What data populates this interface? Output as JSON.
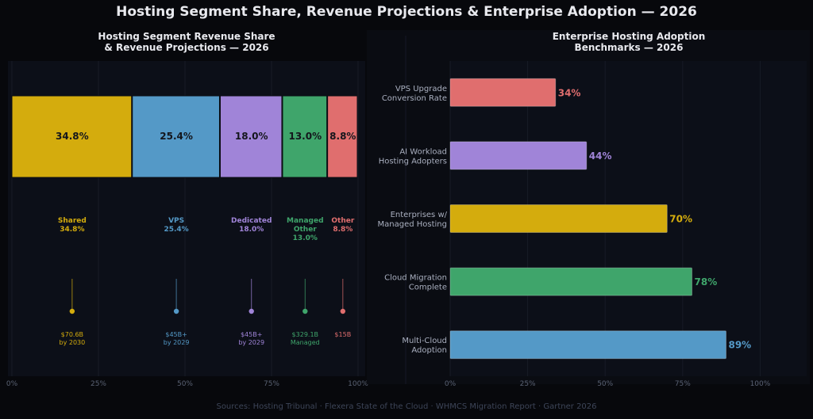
{
  "title": "Hosting Segment Share, Revenue Projections & Enterprise Adoption — 2026",
  "footer": "Sources: Hosting Tribunal · Flexera State of the Cloud · WHMCS Migration Report · Gartner 2026",
  "colors": {
    "background": "#07080c",
    "panel": "#0c0f18",
    "shared": "#d4ac0d",
    "vps": "#5499c7",
    "dedicated": "#a084d8",
    "managed": "#3fa56b",
    "other": "#e06e6e",
    "tick": "#5a6274",
    "label": "#aab0c0"
  },
  "chart_data": [
    {
      "type": "bar",
      "orientation": "horizontal-stacked",
      "title_lines": [
        "Hosting Segment Revenue Share",
        "& Revenue Projections — 2026"
      ],
      "xlim": [
        0,
        100
      ],
      "xticks": [
        "0%",
        "25%",
        "50%",
        "75%",
        "100%"
      ],
      "segments": [
        {
          "name": "Shared",
          "name_lines": [
            "Shared"
          ],
          "value": 34.8,
          "value_label": "34.8%",
          "projection_lines": [
            "$70.6B",
            "by 2030"
          ],
          "color": "#d4ac0d"
        },
        {
          "name": "VPS",
          "name_lines": [
            "VPS"
          ],
          "value": 25.4,
          "value_label": "25.4%",
          "projection_lines": [
            "$45B+",
            "by 2029"
          ],
          "color": "#5499c7"
        },
        {
          "name": "Dedicated",
          "name_lines": [
            "Dedicated"
          ],
          "value": 18.0,
          "value_label": "18.0%",
          "projection_lines": [
            "$45B+",
            "by 2029"
          ],
          "color": "#a084d8"
        },
        {
          "name": "Managed Other",
          "name_lines": [
            "Managed",
            "Other"
          ],
          "value": 13.0,
          "value_label": "13.0%",
          "projection_lines": [
            "$329.1B",
            "Managed"
          ],
          "color": "#3fa56b"
        },
        {
          "name": "Other",
          "name_lines": [
            "Other"
          ],
          "value": 8.8,
          "value_label": "8.8%",
          "projection_lines": [
            "$15B"
          ],
          "color": "#e06e6e"
        }
      ]
    },
    {
      "type": "bar",
      "orientation": "horizontal",
      "title_lines": [
        "Enterprise Hosting Adoption",
        "Benchmarks — 2026"
      ],
      "xlim": [
        0,
        115
      ],
      "xticks": [
        {
          "value": 0,
          "label": "0%"
        },
        {
          "value": 25,
          "label": "25%"
        },
        {
          "value": 50,
          "label": "50%"
        },
        {
          "value": 75,
          "label": "75%"
        },
        {
          "value": 100,
          "label": "100%"
        }
      ],
      "bars": [
        {
          "label_lines": [
            "VPS Upgrade",
            "Conversion Rate"
          ],
          "value": 34,
          "value_label": "34%",
          "color": "#e06e6e"
        },
        {
          "label_lines": [
            "AI Workload",
            "Hosting Adopters"
          ],
          "value": 44,
          "value_label": "44%",
          "color": "#a084d8"
        },
        {
          "label_lines": [
            "Enterprises w/",
            "Managed Hosting"
          ],
          "value": 70,
          "value_label": "70%",
          "color": "#d4ac0d"
        },
        {
          "label_lines": [
            "Cloud Migration",
            "Complete"
          ],
          "value": 78,
          "value_label": "78%",
          "color": "#3fa56b"
        },
        {
          "label_lines": [
            "Multi-Cloud",
            "Adoption"
          ],
          "value": 89,
          "value_label": "89%",
          "color": "#5499c7"
        }
      ]
    }
  ]
}
